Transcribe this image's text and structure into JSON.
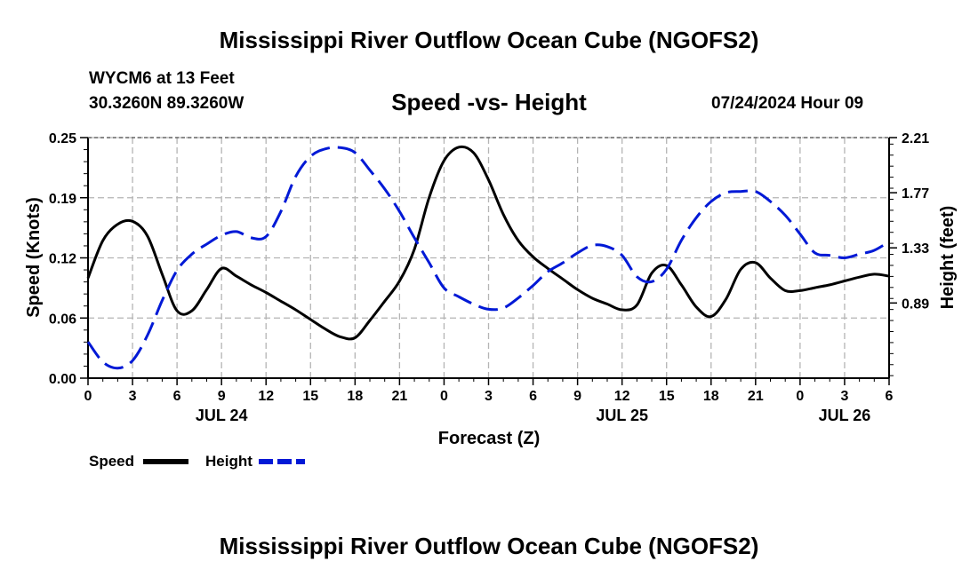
{
  "header": {
    "title": "Mississippi River Outflow Ocean Cube (NGOFS2)",
    "station": "WYCM6 at 13 Feet",
    "coords": "30.3260N  89.3260W",
    "subtitle": "Speed -vs- Height",
    "datetime": "07/24/2024 Hour 09"
  },
  "footer": {
    "title": "Mississippi River Outflow Ocean Cube (NGOFS2)"
  },
  "colors": {
    "speed": "#000000",
    "height": "#0019d6",
    "grid": "#b4b4b4"
  },
  "chart_data": {
    "type": "line",
    "title": "Speed -vs- Height",
    "xlabel": "Forecast (Z)",
    "ylabel": "Speed (Knots)",
    "y2label": "Height (feet)",
    "x_range_hours": [
      0,
      54
    ],
    "ylim": [
      0,
      0.25
    ],
    "y2lim": [
      0.29,
      2.21
    ],
    "yticks": [
      "0.00",
      "0.06",
      "0.12",
      "0.19",
      "0.25"
    ],
    "y2ticks": [
      "0.89",
      "1.33",
      "1.77",
      "2.21"
    ],
    "xticks": [
      "0",
      "3",
      "6",
      "9",
      "12",
      "15",
      "18",
      "21",
      "0",
      "3",
      "6",
      "9",
      "12",
      "15",
      "18",
      "21",
      "0",
      "3",
      "6"
    ],
    "date_labels": [
      {
        "label": "JUL 24",
        "hour": 9
      },
      {
        "label": "JUL 25",
        "hour": 36
      },
      {
        "label": "JUL 26",
        "hour": 51
      }
    ],
    "legend": {
      "position": "bottom-left",
      "entries": [
        "Speed",
        "Height"
      ]
    },
    "series": [
      {
        "name": "Speed",
        "axis": "left",
        "style": "solid",
        "x": [
          0,
          1,
          2,
          3,
          4,
          5,
          6,
          7,
          8,
          9,
          10,
          11,
          12,
          13,
          14,
          15,
          16,
          17,
          18,
          19,
          20,
          21,
          22,
          23,
          24,
          25,
          26,
          27,
          28,
          29,
          30,
          31,
          32,
          33,
          34,
          35,
          36,
          37,
          38,
          39,
          40,
          41,
          42,
          43,
          44,
          45,
          46,
          47,
          48,
          49,
          50,
          51,
          52,
          53,
          54
        ],
        "values": [
          0.104,
          0.143,
          0.16,
          0.163,
          0.148,
          0.108,
          0.07,
          0.07,
          0.092,
          0.114,
          0.106,
          0.097,
          0.089,
          0.08,
          0.071,
          0.061,
          0.051,
          0.043,
          0.042,
          0.06,
          0.08,
          0.101,
          0.134,
          0.188,
          0.226,
          0.24,
          0.234,
          0.206,
          0.17,
          0.143,
          0.126,
          0.114,
          0.103,
          0.092,
          0.083,
          0.077,
          0.071,
          0.076,
          0.109,
          0.117,
          0.097,
          0.074,
          0.064,
          0.082,
          0.113,
          0.12,
          0.104,
          0.091,
          0.091,
          0.094,
          0.097,
          0.101,
          0.105,
          0.108,
          0.106
        ]
      },
      {
        "name": "Height",
        "axis": "right",
        "style": "dashed",
        "x": [
          0,
          1,
          2,
          3,
          4,
          5,
          6,
          7,
          8,
          9,
          10,
          11,
          12,
          13,
          14,
          15,
          16,
          17,
          18,
          19,
          20,
          21,
          22,
          23,
          24,
          25,
          26,
          27,
          28,
          29,
          30,
          31,
          32,
          33,
          34,
          35,
          36,
          37,
          38,
          39,
          40,
          41,
          42,
          43,
          44,
          45,
          46,
          47,
          48,
          49,
          50,
          51,
          52,
          53,
          54
        ],
        "values": [
          0.58,
          0.42,
          0.37,
          0.43,
          0.63,
          0.91,
          1.15,
          1.28,
          1.36,
          1.43,
          1.46,
          1.41,
          1.42,
          1.62,
          1.9,
          2.06,
          2.12,
          2.13,
          2.09,
          1.95,
          1.8,
          1.62,
          1.41,
          1.21,
          1.01,
          0.94,
          0.88,
          0.84,
          0.85,
          0.93,
          1.03,
          1.14,
          1.21,
          1.29,
          1.35,
          1.34,
          1.27,
          1.1,
          1.06,
          1.16,
          1.39,
          1.57,
          1.7,
          1.77,
          1.78,
          1.78,
          1.7,
          1.59,
          1.44,
          1.29,
          1.27,
          1.25,
          1.28,
          1.31,
          1.38
        ]
      }
    ]
  }
}
